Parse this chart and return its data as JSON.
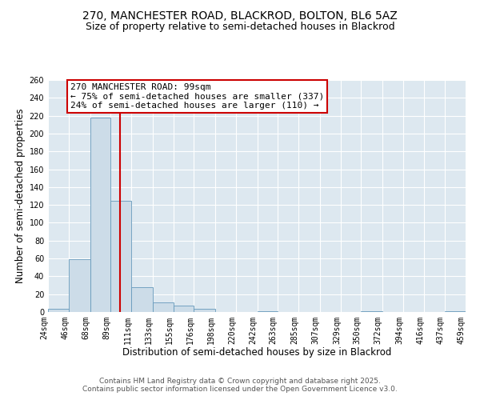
{
  "title": "270, MANCHESTER ROAD, BLACKROD, BOLTON, BL6 5AZ",
  "subtitle": "Size of property relative to semi-detached houses in Blackrod",
  "xlabel": "Distribution of semi-detached houses by size in Blackrod",
  "ylabel": "Number of semi-detached properties",
  "bin_edges": [
    24,
    46,
    68,
    89,
    111,
    133,
    155,
    176,
    198,
    220,
    242,
    263,
    285,
    307,
    329,
    350,
    372,
    394,
    416,
    437,
    459
  ],
  "bar_heights": [
    4,
    59,
    218,
    125,
    28,
    11,
    7,
    4,
    0,
    0,
    1,
    0,
    0,
    0,
    0,
    1,
    0,
    0,
    0,
    1
  ],
  "bar_color": "#ccdce8",
  "bar_edge_color": "#6699bb",
  "property_size": 99,
  "vline_color": "#cc0000",
  "annotation_text": "270 MANCHESTER ROAD: 99sqm\n← 75% of semi-detached houses are smaller (337)\n24% of semi-detached houses are larger (110) →",
  "annotation_box_color": "#cc0000",
  "annotation_text_color": "#000000",
  "ylim": [
    0,
    260
  ],
  "yticks": [
    0,
    20,
    40,
    60,
    80,
    100,
    120,
    140,
    160,
    180,
    200,
    220,
    240,
    260
  ],
  "plot_bg_color": "#dde8f0",
  "footer_line1": "Contains HM Land Registry data © Crown copyright and database right 2025.",
  "footer_line2": "Contains public sector information licensed under the Open Government Licence v3.0.",
  "title_fontsize": 10,
  "subtitle_fontsize": 9,
  "axis_label_fontsize": 8.5,
  "tick_fontsize": 7,
  "annotation_fontsize": 8,
  "footer_fontsize": 6.5
}
